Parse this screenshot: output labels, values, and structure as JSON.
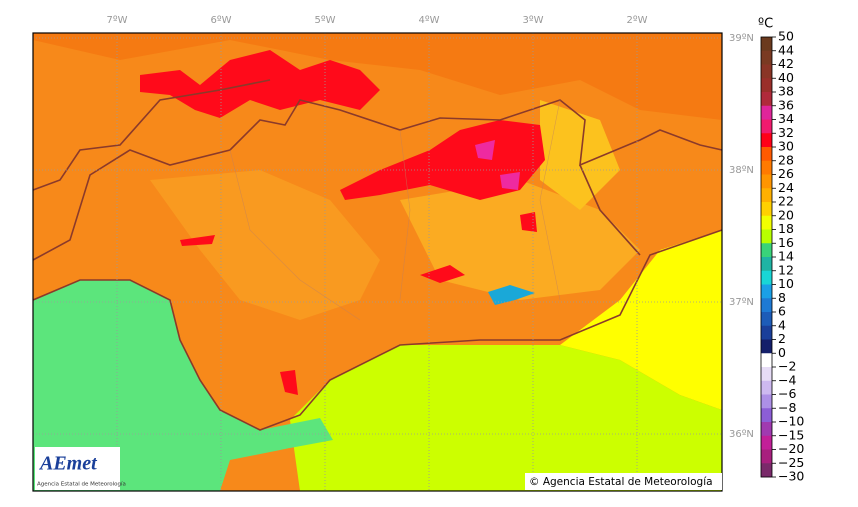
{
  "map": {
    "longitude_labels": [
      "7ºW",
      "6ºW",
      "5ºW",
      "4ºW",
      "3ºW",
      "2ºW"
    ],
    "latitude_labels": [
      "39ºN",
      "38ºN",
      "37ºN",
      "36ºN"
    ],
    "unit": "ºC",
    "colorbar": {
      "labels": [
        "50",
        "44",
        "42",
        "40",
        "38",
        "36",
        "34",
        "32",
        "30",
        "28",
        "26",
        "24",
        "22",
        "20",
        "18",
        "16",
        "14",
        "12",
        "10",
        "8",
        "6",
        "4",
        "2",
        "0",
        "−2",
        "−4",
        "−6",
        "−8",
        "−10",
        "−15",
        "−20",
        "−25",
        "−30"
      ],
      "colors": [
        "#6b3a1e",
        "#7a3a22",
        "#8a3526",
        "#9a2f2a",
        "#b02a3a",
        "#e0259a",
        "#f21a6e",
        "#ff0018",
        "#ff5a00",
        "#ff7a00",
        "#ff9500",
        "#ffb000",
        "#ffd000",
        "#f2ff00",
        "#b8ff00",
        "#39d37a",
        "#1fb4a4",
        "#19d6d6",
        "#1aa0e6",
        "#1e7ad4",
        "#1d5cb8",
        "#1a3f9a",
        "#141f6a",
        "#ffffff",
        "#e6dcf6",
        "#cdb9f0",
        "#ad90e6",
        "#8c5ed6",
        "#a03ab0",
        "#c22098",
        "#a8207e",
        "#7a2a6a"
      ]
    },
    "logo": {
      "name": "AEmet",
      "subtitle": "Agencia Estatal de Meteorología"
    },
    "copyright": "© Agencia Estatal de Meteorología"
  }
}
